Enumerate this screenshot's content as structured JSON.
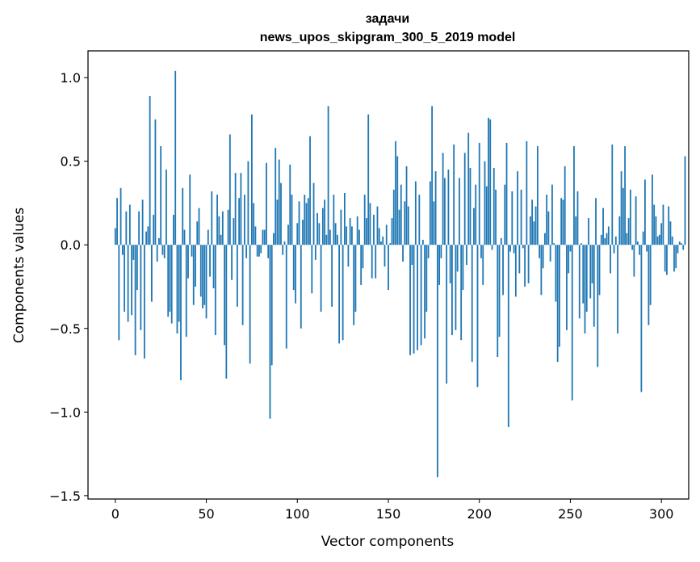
{
  "chart_data": {
    "type": "bar",
    "title_lines": [
      "задачи",
      "news_upos_skipgram_300_5_2019 model"
    ],
    "xlabel": "Vector components",
    "ylabel": "Components values",
    "xlim": [
      -15,
      315
    ],
    "ylim": [
      -1.52,
      1.16
    ],
    "x_ticks": [
      0,
      50,
      100,
      150,
      200,
      250,
      300
    ],
    "x_tick_labels": [
      "0",
      "50",
      "100",
      "150",
      "200",
      "250",
      "300"
    ],
    "y_ticks": [
      -1.5,
      -1.0,
      -0.5,
      0.0,
      0.5,
      1.0
    ],
    "y_tick_labels": [
      "−1.5",
      "−1.0",
      "−0.5",
      "0.0",
      "0.5",
      "1.0"
    ],
    "bar_color": "#1f77b4",
    "grid": false,
    "series": [
      {
        "name": "задачи",
        "values": [
          0.1,
          0.28,
          -0.57,
          0.34,
          -0.06,
          -0.4,
          0.2,
          -0.46,
          0.24,
          -0.42,
          -0.09,
          -0.66,
          -0.27,
          0.2,
          -0.51,
          0.27,
          -0.68,
          0.08,
          0.11,
          0.89,
          -0.34,
          0.18,
          0.75,
          -0.1,
          0.04,
          0.59,
          -0.06,
          -0.08,
          0.45,
          -0.43,
          -0.4,
          -0.47,
          0.18,
          1.04,
          -0.53,
          -0.46,
          -0.81,
          0.34,
          0.09,
          -0.55,
          -0.2,
          0.42,
          -0.07,
          -0.36,
          -0.25,
          0.14,
          0.22,
          -0.31,
          -0.38,
          -0.36,
          -0.44,
          0.09,
          -0.19,
          0.32,
          -0.26,
          -0.54,
          0.3,
          0.17,
          0.06,
          0.2,
          -0.6,
          -0.8,
          0.21,
          0.66,
          -0.21,
          0.16,
          0.43,
          -0.37,
          0.28,
          0.43,
          -0.48,
          0.3,
          -0.08,
          0.5,
          -0.71,
          0.78,
          0.25,
          0.11,
          -0.07,
          -0.07,
          -0.05,
          0.09,
          0.09,
          0.49,
          -0.08,
          -1.04,
          -0.72,
          0.07,
          0.58,
          0.27,
          0.51,
          0.37,
          -0.06,
          0.02,
          -0.62,
          0.12,
          0.48,
          0.3,
          -0.27,
          -0.35,
          0.13,
          0.26,
          -0.5,
          0.15,
          0.3,
          0.25,
          0.28,
          0.65,
          -0.29,
          0.37,
          -0.09,
          0.19,
          0.13,
          -0.4,
          0.22,
          0.27,
          0.06,
          0.83,
          0.09,
          -0.37,
          0.3,
          0.13,
          0.06,
          -0.59,
          0.21,
          -0.57,
          0.31,
          0.11,
          -0.13,
          0.16,
          0.11,
          -0.48,
          -0.4,
          0.17,
          0.09,
          -0.24,
          -0.14,
          0.3,
          0.16,
          0.78,
          0.25,
          -0.2,
          0.18,
          -0.2,
          0.23,
          0.1,
          0.02,
          0.05,
          -0.13,
          0.12,
          -0.27,
          0.01,
          0.16,
          0.33,
          0.62,
          0.53,
          0.21,
          0.36,
          -0.1,
          0.26,
          0.47,
          0.23,
          -0.66,
          -0.12,
          -0.65,
          0.38,
          -0.63,
          0.3,
          -0.6,
          0.03,
          -0.56,
          -0.4,
          -0.08,
          0.38,
          0.83,
          0.26,
          0.44,
          -1.39,
          -0.24,
          -0.08,
          0.55,
          0.4,
          -0.83,
          0.45,
          -0.23,
          -0.54,
          0.6,
          -0.51,
          -0.16,
          0.4,
          -0.57,
          -0.27,
          0.55,
          -0.12,
          0.67,
          0.46,
          -0.7,
          0.22,
          0.36,
          -0.85,
          0.61,
          -0.08,
          -0.24,
          0.5,
          0.35,
          0.76,
          0.75,
          -0.03,
          0.46,
          0.33,
          -0.67,
          -0.55,
          0.04,
          -0.3,
          0.36,
          0.61,
          -1.09,
          -0.04,
          0.32,
          -0.05,
          -0.31,
          0.44,
          -0.17,
          0.33,
          -0.02,
          -0.25,
          0.62,
          -0.23,
          0.17,
          0.27,
          0.14,
          0.23,
          0.59,
          -0.08,
          -0.3,
          -0.14,
          0.07,
          0.3,
          0.2,
          -0.1,
          0.36,
          0.01,
          -0.34,
          -0.7,
          -0.61,
          0.28,
          0.27,
          0.47,
          -0.51,
          -0.17,
          -0.04,
          -0.93,
          0.59,
          0.17,
          0.32,
          -0.44,
          0.01,
          -0.35,
          -0.53,
          -0.4,
          0.16,
          -0.32,
          -0.23,
          -0.49,
          0.28,
          -0.73,
          -0.3,
          0.06,
          0.22,
          0.04,
          0.07,
          0.11,
          -0.17,
          0.6,
          -0.05,
          0.05,
          -0.53,
          0.17,
          0.44,
          0.34,
          0.59,
          0.07,
          0.16,
          0.33,
          -0.03,
          -0.19,
          0.29,
          0.02,
          -0.06,
          -0.88,
          0.08,
          0.39,
          -0.04,
          -0.48,
          -0.36,
          0.42,
          0.24,
          0.17,
          0.05,
          0.06,
          0.13,
          0.24,
          -0.16,
          -0.18,
          0.23,
          0.14,
          0.05,
          -0.16,
          -0.14,
          -0.05,
          0.02,
          0.01,
          -0.03,
          0.53
        ]
      }
    ]
  }
}
